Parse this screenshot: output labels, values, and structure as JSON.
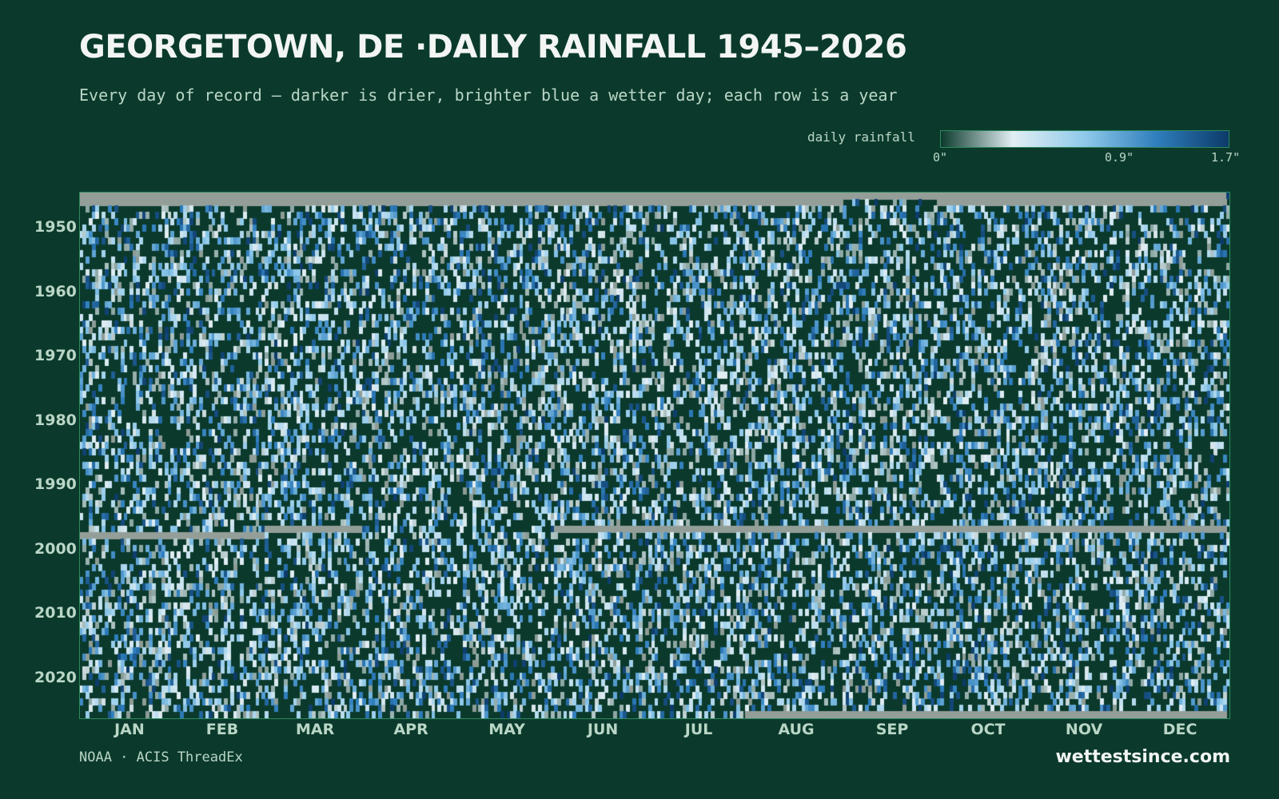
{
  "chart_data": {
    "type": "heatmap",
    "title": "GEORGETOWN, DE ·DAILY RAINFALL 1945–2026",
    "subtitle": "Every day of record — darker is drier, brighter blue a wetter day; each row is a year",
    "year_range": [
      1945,
      2026
    ],
    "x_axis": {
      "tick_labels": [
        "JAN",
        "FEB",
        "MAR",
        "APR",
        "MAY",
        "JUN",
        "JUL",
        "AUG",
        "SEP",
        "OCT",
        "NOV",
        "DEC"
      ],
      "unit": "day of year"
    },
    "y_axis": {
      "tick_labels": [
        "1950",
        "1960",
        "1970",
        "1980",
        "1990",
        "2000",
        "2010",
        "2020"
      ],
      "ticks": [
        1950,
        1960,
        1970,
        1980,
        1990,
        2000,
        2010,
        2020
      ]
    },
    "legend": {
      "label": "daily rainfall",
      "tick_labels": [
        "0\"",
        "0.9\"",
        "1.7\""
      ],
      "ticks": [
        0,
        0.9,
        1.7
      ],
      "range": [
        0,
        1.7
      ],
      "unit": "inches",
      "placement": "top-right"
    },
    "missing_periods": [
      {
        "year": 1945,
        "from": "Jan 1",
        "to": "Dec 31"
      },
      {
        "year": 1946,
        "from": "Jan 1",
        "to": "Aug 31"
      },
      {
        "year": 1946,
        "from": "Oct 1",
        "to": "Dec 31"
      },
      {
        "year": 1997,
        "from": "Mar 1",
        "to": "Mar 31"
      },
      {
        "year": 1997,
        "from": "Jun 1",
        "to": "Dec 31"
      },
      {
        "year": 1998,
        "from": "Jan 1",
        "to": "Feb 28"
      },
      {
        "year": 2026,
        "from": "Aug 1",
        "to": "Dec 31"
      }
    ],
    "grid": false
  },
  "colors": {
    "background": "#0b3a2c",
    "dry": "#0b3a2c",
    "missing": "#949e98",
    "scale": [
      "#0b3a2c",
      "#e2eef3",
      "#8fc9ea",
      "#2f7ebd",
      "#0c3a68"
    ],
    "frame": "#2e8a5e"
  },
  "footer": {
    "source": "NOAA · ACIS ThreadEx",
    "brand": "wettestsince.com"
  }
}
